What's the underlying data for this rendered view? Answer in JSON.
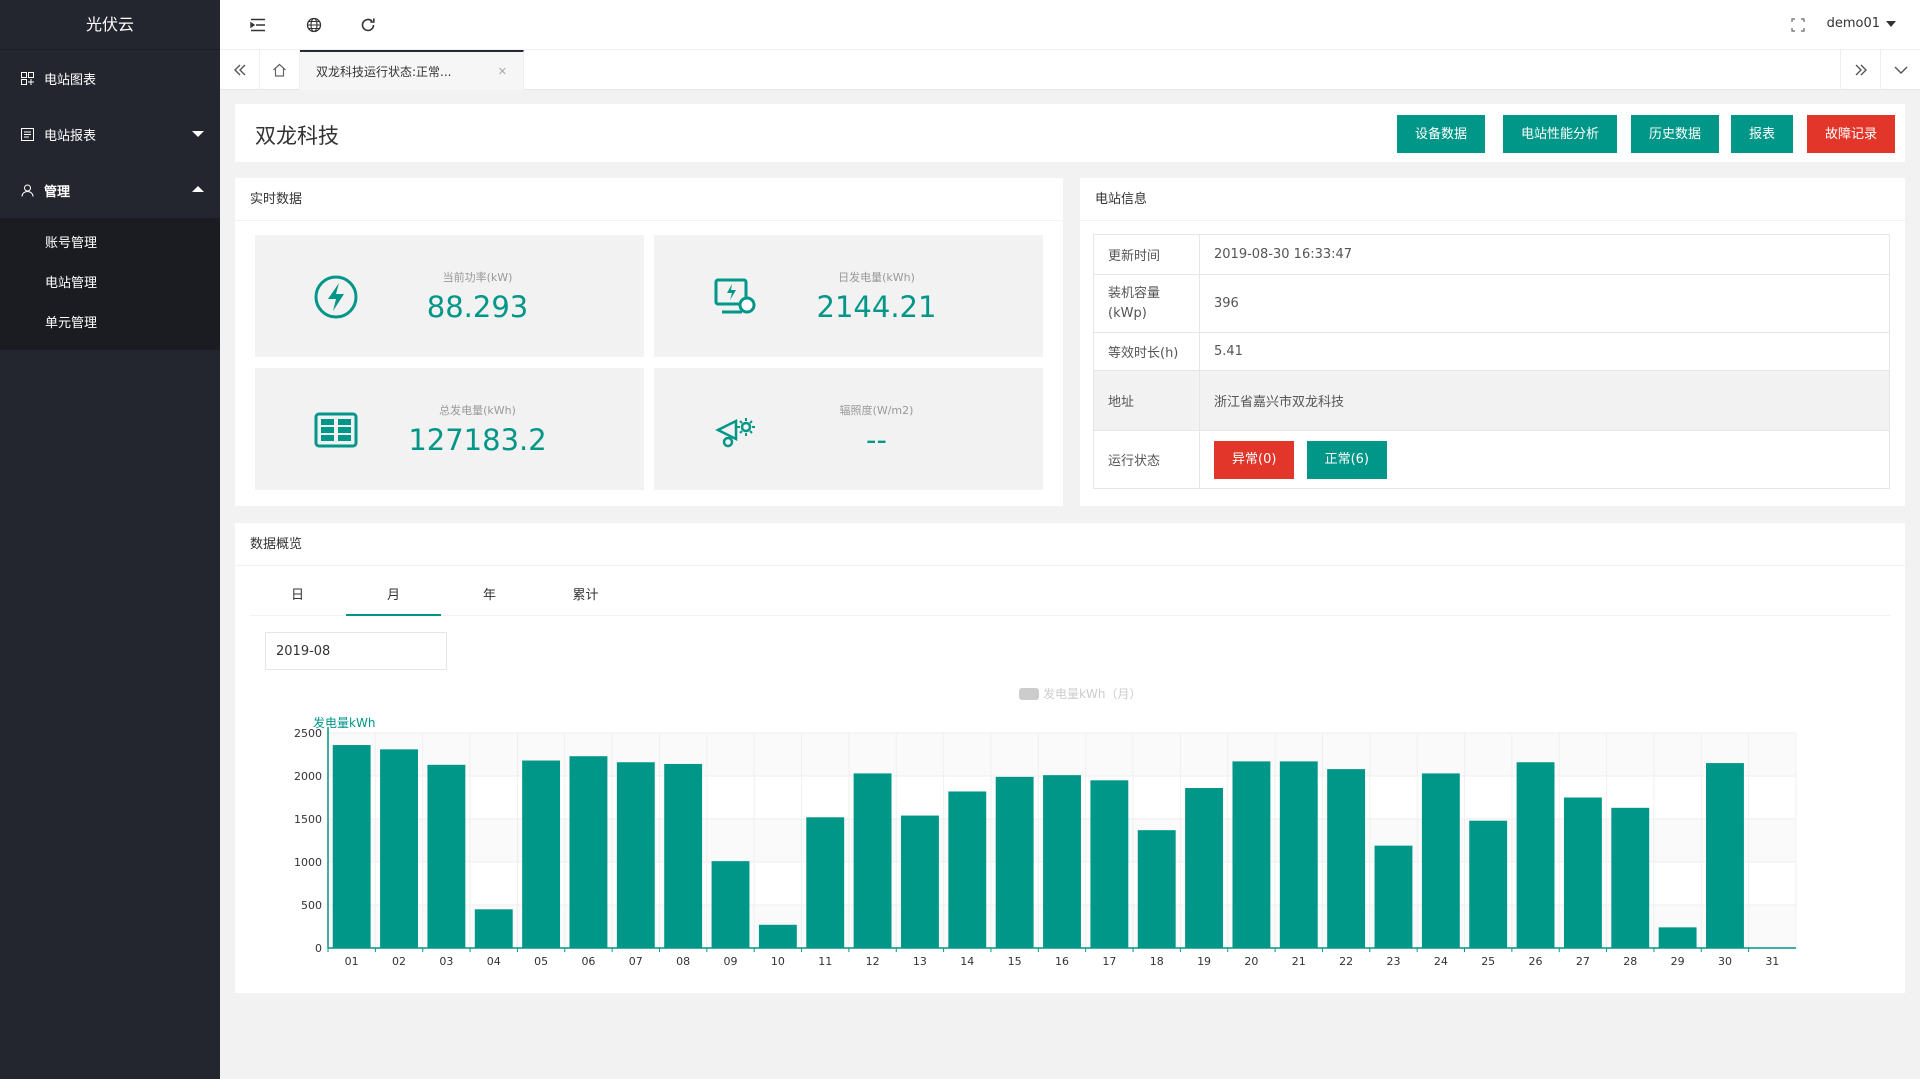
{
  "app": {
    "name": "光伏云"
  },
  "sidebar": {
    "items": [
      {
        "label": "电站图表"
      },
      {
        "label": "电站报表"
      },
      {
        "label": "管理"
      }
    ],
    "sub_items": [
      {
        "label": "账号管理"
      },
      {
        "label": "电站管理"
      },
      {
        "label": "单元管理"
      }
    ]
  },
  "header": {
    "user": "demo01"
  },
  "tabbar": {
    "active_tab": "双龙科技运行状态:正常..."
  },
  "page": {
    "title": "双龙科技",
    "buttons": {
      "device_data": "设备数据",
      "performance": "电站性能分析",
      "history": "历史数据",
      "report": "报表",
      "fault_log": "故障记录"
    }
  },
  "realtime": {
    "title": "实时数据",
    "stats": [
      {
        "label": "当前功率(kW)",
        "value": "88.293",
        "icon": "lightning-icon"
      },
      {
        "label": "日发电量(kWh)",
        "value": "2144.21",
        "icon": "monitor-icon"
      },
      {
        "label": "总发电量(kWh)",
        "value": "127183.2",
        "icon": "grid-icon"
      },
      {
        "label": "辐照度(W/m2)",
        "value": "--",
        "icon": "sun-icon"
      }
    ]
  },
  "station_info": {
    "title": "电站信息",
    "rows": [
      {
        "key": "更新时间",
        "value": "2019-08-30 16:33:47"
      },
      {
        "key": "装机容量\n(kWp)",
        "value": "396"
      },
      {
        "key": "等效时长(h)",
        "value": "5.41"
      },
      {
        "key": "地址",
        "value": "浙江省嘉兴市双龙科技"
      }
    ],
    "status_key": "运行状态",
    "status_abnormal": "异常(0)",
    "status_normal": "正常(6)"
  },
  "overview": {
    "title": "数据概览",
    "tabs": [
      "日",
      "月",
      "年",
      "累计"
    ],
    "active_tab": 1,
    "date_value": "2019-08"
  },
  "colors": {
    "accent": "#009688",
    "danger": "#e2362a",
    "sidebar": "#23262e"
  },
  "chart_data": {
    "type": "bar",
    "legend": "发电量kWh（月）",
    "ylabel": "发电量kWh",
    "ylim": [
      0,
      2500
    ],
    "yticks": [
      0,
      500,
      1000,
      1500,
      2000,
      2500
    ],
    "categories": [
      "01",
      "02",
      "03",
      "04",
      "05",
      "06",
      "07",
      "08",
      "09",
      "10",
      "11",
      "12",
      "13",
      "14",
      "15",
      "16",
      "17",
      "18",
      "19",
      "20",
      "21",
      "22",
      "23",
      "24",
      "25",
      "26",
      "27",
      "28",
      "29",
      "30",
      "31"
    ],
    "values": [
      2360,
      2310,
      2130,
      450,
      2180,
      2230,
      2160,
      2140,
      1010,
      270,
      1520,
      2030,
      1540,
      1820,
      1990,
      2010,
      1950,
      1370,
      1860,
      2170,
      2170,
      2080,
      1190,
      2030,
      1480,
      2160,
      1750,
      1630,
      240,
      2150,
      0
    ]
  }
}
